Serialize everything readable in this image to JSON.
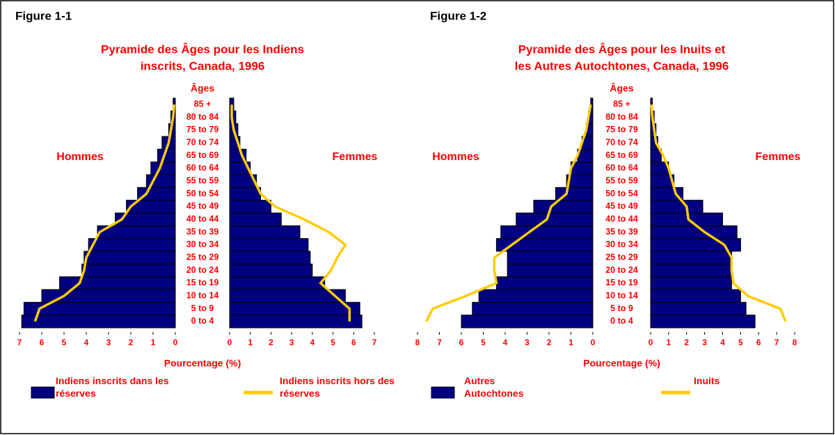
{
  "chart_data": [
    {
      "type": "pyramid",
      "figure": "Figure 1-1",
      "title": [
        "Pyramide des Âges pour les Indiens",
        "inscrits, Canada, 1996"
      ],
      "y_label": "Âges",
      "x_label": "Pourcentage (%)",
      "left_label": "Hommes",
      "right_label": "Femmes",
      "categories": [
        "0 to 4",
        "5 to 9",
        "10 to 14",
        "15 to 19",
        "20 to 24",
        "25 to 29",
        "30 to 34",
        "35 to 39",
        "40 to 44",
        "45 to 49",
        "50 to 54",
        "55 to 59",
        "60 to 64",
        "65 to 69",
        "70 to 74",
        "75 to 79",
        "80 to 84",
        "85 +"
      ],
      "xlim": [
        0,
        7
      ],
      "xticks": [
        0,
        1,
        2,
        3,
        4,
        5,
        6,
        7
      ],
      "series": [
        {
          "name": "Indiens inscrits dans les réserves",
          "color": "#000080",
          "style": "bar",
          "men": [
            6.9,
            6.8,
            6.0,
            5.2,
            4.2,
            4.1,
            3.9,
            3.5,
            2.7,
            2.2,
            1.7,
            1.3,
            1.1,
            0.8,
            0.6,
            0.3,
            0.2,
            0.1
          ],
          "women": [
            6.4,
            6.3,
            5.6,
            4.6,
            4.0,
            3.9,
            3.8,
            3.4,
            2.5,
            2.0,
            1.5,
            1.3,
            1.0,
            0.8,
            0.5,
            0.4,
            0.3,
            0.2
          ]
        },
        {
          "name": "Indiens inscrits hors des réserves",
          "color": "#ffcc00",
          "style": "line",
          "men": [
            6.3,
            6.1,
            5.0,
            4.3,
            4.1,
            4.0,
            3.7,
            3.4,
            2.4,
            2.0,
            1.3,
            1.0,
            0.7,
            0.5,
            0.3,
            0.2,
            0.1,
            0.05
          ],
          "women": [
            5.8,
            5.8,
            5.1,
            4.4,
            4.9,
            5.2,
            5.6,
            4.8,
            3.6,
            2.2,
            1.5,
            1.2,
            0.9,
            0.6,
            0.4,
            0.2,
            0.1,
            0.1
          ]
        }
      ]
    },
    {
      "type": "pyramid",
      "figure": "Figure 1-2",
      "title": [
        "Pyramide des Âges pour les Inuits et",
        "les Autres Autochtones, Canada, 1996"
      ],
      "y_label": "Âges",
      "x_label": "Pourcentage (%)",
      "left_label": "Hommes",
      "right_label": "Femmes",
      "categories": [
        "0 to 4",
        "5 to 9",
        "10 to 14",
        "15 to 19",
        "20 to 24",
        "25 to 29",
        "30 to 34",
        "35 to 39",
        "40 to 44",
        "45 to 49",
        "50 to 54",
        "55 to 59",
        "60 to 64",
        "65 to 69",
        "70 to 74",
        "75 to 79",
        "80 to 84",
        "85 +"
      ],
      "xlim": [
        0,
        8
      ],
      "xticks": [
        0,
        1,
        2,
        3,
        4,
        5,
        6,
        7,
        8
      ],
      "series": [
        {
          "name": "Autres Autochtones",
          "color": "#000080",
          "style": "bar",
          "men": [
            6.0,
            5.5,
            5.2,
            4.4,
            3.9,
            3.9,
            4.4,
            4.2,
            3.5,
            2.7,
            1.7,
            1.2,
            1.0,
            0.7,
            0.5,
            0.3,
            0.2,
            0.1
          ],
          "women": [
            5.8,
            5.3,
            5.0,
            4.5,
            4.5,
            4.5,
            5.0,
            4.8,
            4.0,
            2.9,
            1.8,
            1.3,
            1.0,
            0.6,
            0.4,
            0.3,
            0.2,
            0.1
          ]
        },
        {
          "name": "Inuits",
          "color": "#ffcc00",
          "style": "line",
          "men": [
            7.6,
            7.3,
            5.8,
            4.4,
            4.5,
            4.5,
            3.7,
            2.9,
            2.1,
            1.9,
            1.2,
            1.1,
            1.0,
            0.7,
            0.5,
            0.3,
            0.2,
            0.1
          ],
          "women": [
            7.5,
            7.2,
            5.4,
            4.6,
            4.5,
            4.5,
            4.1,
            3.0,
            2.1,
            2.0,
            1.4,
            1.2,
            1.0,
            0.7,
            0.3,
            0.2,
            0.1,
            0.05
          ]
        }
      ]
    }
  ]
}
